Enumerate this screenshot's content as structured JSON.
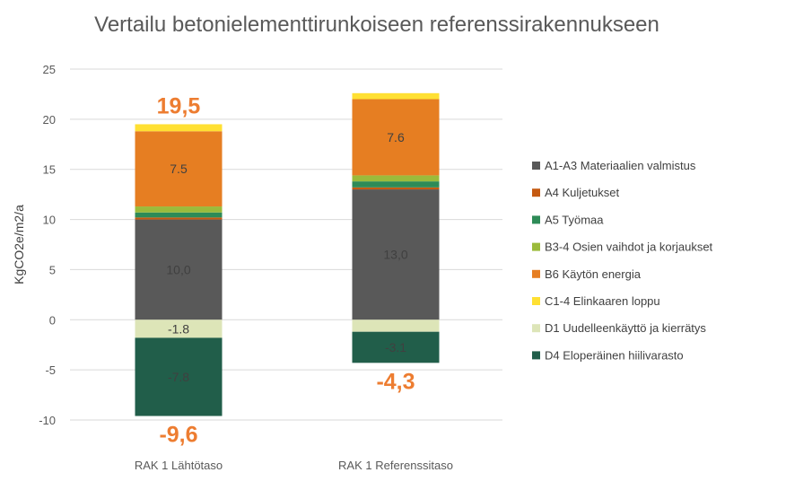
{
  "chart_data": {
    "type": "bar",
    "stacked": true,
    "title": "Vertailu betonielementtirunkoiseen referenssirakennukseen",
    "ylabel": "KgCO2e/m2/a",
    "xlabel": "",
    "ylim": [
      -10,
      25
    ],
    "yticks": [
      -10,
      -5,
      0,
      5,
      10,
      15,
      20,
      25
    ],
    "grid": true,
    "legend_position": "right",
    "categories": [
      "RAK 1 Lähtötaso",
      "RAK 1 Referenssitaso"
    ],
    "series": [
      {
        "name": "A1-A3 Materiaalien valmistus",
        "color": "#595959",
        "values": [
          10.0,
          13.0
        ],
        "labels": [
          "10,0",
          "13,0"
        ]
      },
      {
        "name": "A4 Kuljetukset",
        "color": "#C55A11",
        "values": [
          0.2,
          0.2
        ],
        "labels": [
          "",
          ""
        ]
      },
      {
        "name": "A5 Työmaa",
        "color": "#2E8B57",
        "values": [
          0.5,
          0.6
        ],
        "labels": [
          "",
          ""
        ]
      },
      {
        "name": "B3-4 Osien vaihdot ja korjaukset",
        "color": "#9BBB3B",
        "values": [
          0.6,
          0.6
        ],
        "labels": [
          "",
          ""
        ]
      },
      {
        "name": "B6 Käytön energia",
        "color": "#E67E22",
        "values": [
          7.5,
          7.6
        ],
        "labels": [
          "7.5",
          "7.6"
        ]
      },
      {
        "name": "C1-4 Elinkaaren loppu",
        "color": "#FFE033",
        "values": [
          0.7,
          0.6
        ],
        "labels": [
          "",
          ""
        ]
      },
      {
        "name": "D1 Uudelleenkäyttö ja kierrätys",
        "color": "#DDE5B8",
        "values": [
          -1.8,
          -1.2
        ],
        "labels": [
          "-1.8",
          ""
        ]
      },
      {
        "name": "D4 Eloperäinen hiilivarasto",
        "color": "#215E4A",
        "values": [
          -7.8,
          -3.1
        ],
        "labels": [
          "-7.8",
          "-3.1"
        ]
      }
    ],
    "totals_positive": [
      "19,5",
      ""
    ],
    "totals_negative": [
      "-9,6",
      "-4,3"
    ]
  }
}
